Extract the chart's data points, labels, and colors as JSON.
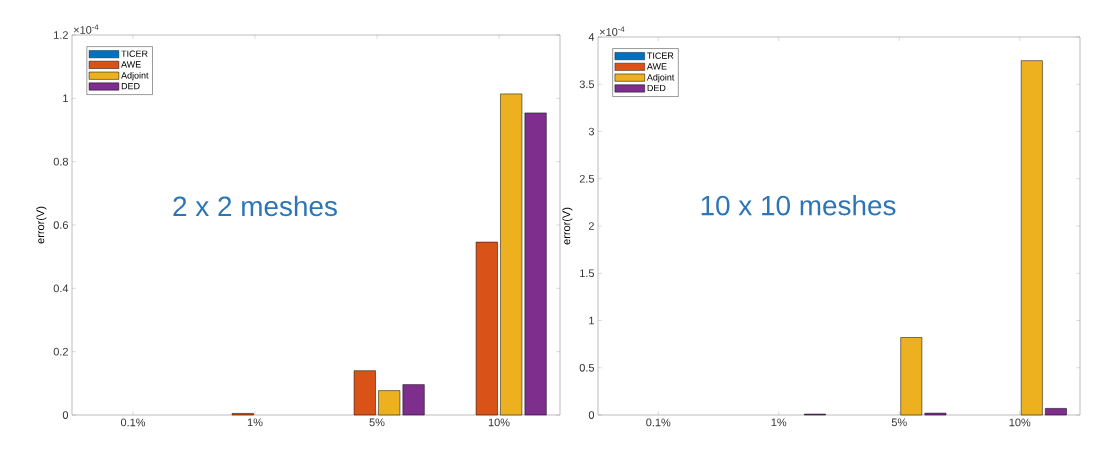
{
  "chart_data": [
    {
      "type": "bar",
      "categories": [
        "0.1%",
        "1%",
        "5%",
        "10%"
      ],
      "series": [
        {
          "name": "TICER",
          "color": "#0072bd",
          "values": [
            0,
            0,
            0,
            0
          ]
        },
        {
          "name": "AWE",
          "color": "#d95319",
          "values": [
            0,
            0.005,
            0.14,
            0.546
          ]
        },
        {
          "name": "Adjoint",
          "color": "#edb120",
          "values": [
            0,
            0,
            0.077,
            1.014
          ]
        },
        {
          "name": "DED",
          "color": "#7e2f8e",
          "values": [
            0,
            0,
            0.096,
            0.954
          ]
        }
      ],
      "ylabel": "error(V)",
      "ylim": [
        0,
        1.2
      ],
      "yticks": [
        0,
        0.2,
        0.4,
        0.6,
        0.8,
        1,
        1.2
      ],
      "legend": "top left",
      "grid": false,
      "annotations": [
        "×10$^{-4}$",
        "2 x 2 meshes"
      ]
    },
    {
      "type": "bar",
      "categories": [
        "0.1%",
        "1%",
        "5%",
        "10%"
      ],
      "series": [
        {
          "name": "TICER",
          "color": "#0072bd",
          "values": [
            0,
            0,
            0,
            0
          ]
        },
        {
          "name": "AWE",
          "color": "#d95319",
          "values": [
            0,
            0,
            0,
            0
          ]
        },
        {
          "name": "Adjoint",
          "color": "#edb120",
          "values": [
            0,
            0,
            0.82,
            3.75
          ]
        },
        {
          "name": "DED",
          "color": "#7e2f8e",
          "values": [
            0,
            0.01,
            0.02,
            0.07
          ]
        }
      ],
      "ylabel": "error(V)",
      "ylim": [
        0,
        4
      ],
      "yticks": [
        0,
        0.5,
        1,
        1.5,
        2,
        2.5,
        3,
        3.5,
        4
      ],
      "legend": "top left",
      "grid": false,
      "annotations": [
        "×10$^{-4}$",
        "10 x 10 meshes"
      ]
    }
  ]
}
